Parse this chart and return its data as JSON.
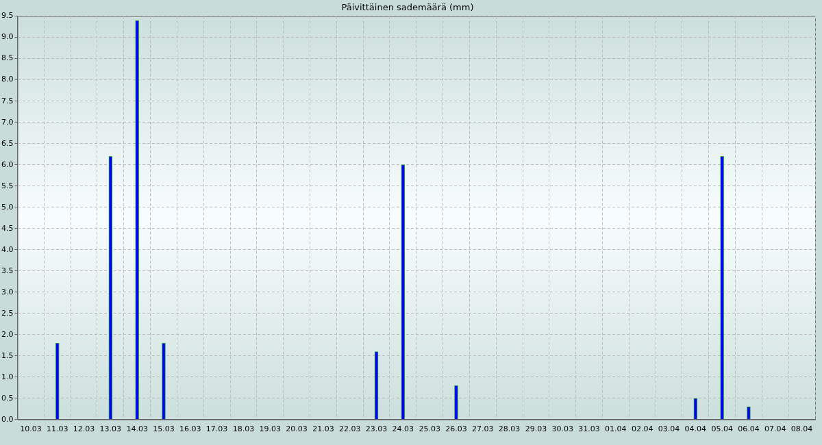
{
  "chart_data": {
    "type": "bar",
    "title": "Päivittäinen sademäärä (mm)",
    "categories": [
      "10.03",
      "11.03",
      "12.03",
      "13.03",
      "14.03",
      "15.03",
      "16.03",
      "17.03",
      "18.03",
      "19.03",
      "20.03",
      "21.03",
      "22.03",
      "23.03",
      "24.03",
      "25.03",
      "26.03",
      "27.03",
      "28.03",
      "29.03",
      "30.03",
      "31.03",
      "01.04",
      "02.04",
      "03.04",
      "04.04",
      "05.04",
      "06.04",
      "07.04",
      "08.04"
    ],
    "values": [
      0,
      1.8,
      0,
      6.2,
      9.4,
      1.8,
      0,
      0,
      0,
      0,
      0,
      0,
      0,
      1.6,
      6.0,
      0,
      0.8,
      0,
      0,
      0,
      0,
      0,
      0,
      0,
      0,
      0.5,
      6.2,
      0.3,
      0,
      0
    ],
    "color": "#0000ff",
    "ylim": [
      0,
      9.5
    ],
    "yticks": [
      {
        "value": 0,
        "label": "0.0"
      },
      {
        "value": 0.5,
        "label": "0.5"
      },
      {
        "value": 1,
        "label": "1.0"
      },
      {
        "value": 1.5,
        "label": "1.5"
      },
      {
        "value": 2,
        "label": "2.0"
      },
      {
        "value": 2.5,
        "label": "2.5"
      },
      {
        "value": 3,
        "label": "3.0"
      },
      {
        "value": 3.5,
        "label": "3.5"
      },
      {
        "value": 4,
        "label": "4.0"
      },
      {
        "value": 4.5,
        "label": "4.5"
      },
      {
        "value": 5,
        "label": "5.0"
      },
      {
        "value": 5.5,
        "label": "5.5"
      },
      {
        "value": 6,
        "label": "6.0"
      },
      {
        "value": 6.5,
        "label": "6.5"
      },
      {
        "value": 7,
        "label": "7.0"
      },
      {
        "value": 7.5,
        "label": "7.5"
      },
      {
        "value": 8,
        "label": "8.0"
      },
      {
        "value": 8.5,
        "label": "8.5"
      },
      {
        "value": 9,
        "label": "9.0"
      },
      {
        "value": 9.5,
        "label": "9.5"
      }
    ],
    "grid": true
  }
}
